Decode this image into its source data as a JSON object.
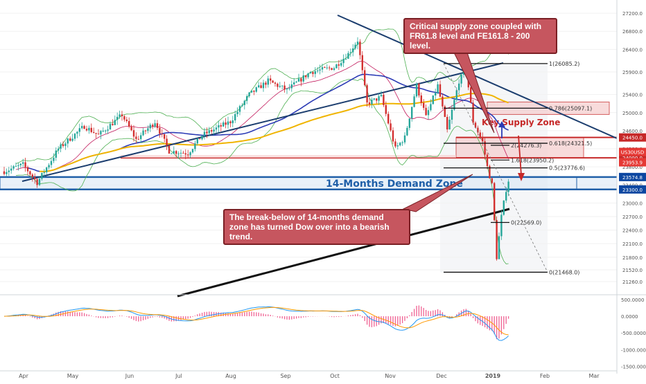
{
  "chart_data": {
    "type": "candlestick",
    "symbol": "US30USD",
    "colors": {
      "bull": "#26a69a",
      "bear": "#d32f2f",
      "ma_blue": "#2c3bb5",
      "ma_orange": "#f0b400",
      "ma_red": "#c2185b",
      "bollinger": "#4caf50",
      "demand": "#1f5fa8",
      "supply": "#c62828",
      "trend": "#1b3d6e",
      "macd": "#2196f3",
      "signal": "#ff9800",
      "hist": "#e91e63"
    },
    "y_axis": {
      "range": [
        21000,
        27400
      ],
      "ticks": [
        "27200.0",
        "26800.0",
        "26400.0",
        "25900.0",
        "25400.0",
        "25000.0",
        "24600.0",
        "24200.0",
        "23800.0",
        "23400.0",
        "23000.0",
        "22700.0",
        "22400.0",
        "22100.0",
        "21800.0",
        "21520.0",
        "21260.0"
      ]
    },
    "x_axis": {
      "labels": [
        "Apr",
        "May",
        "Jun",
        "Jul",
        "Aug",
        "Sep",
        "Oct",
        "Nov",
        "Dec",
        "2019",
        "Feb",
        "Mar"
      ]
    },
    "price_labels": [
      {
        "text": "24450.0",
        "kind": "supply"
      },
      {
        "text": "24000.0",
        "kind": "supply"
      },
      {
        "text": "US30USD",
        "kind": "current"
      },
      {
        "text": "23953.9",
        "kind": "current"
      },
      {
        "text": "23574.8",
        "kind": "demand"
      },
      {
        "text": "23300.0",
        "kind": "demand"
      }
    ],
    "zones": {
      "demand_label": "14-Months Demand Zone",
      "supply_label": "Key Supply Zone"
    },
    "fib_retracement": [
      {
        "text": "1(26085.2)",
        "value": 26085.2
      },
      {
        "text": "0.786(25097.1)",
        "value": 25097.1
      },
      {
        "text": "0.618(24321.5)",
        "value": 24321.5
      },
      {
        "text": "0.5(23776.6)",
        "value": 23776.6
      },
      {
        "text": "0(21468.0)",
        "value": 21468.0
      }
    ],
    "fib_extension": [
      {
        "text": "2(24276.3)",
        "value": 24276.3
      },
      {
        "text": "1.618(23950.2)",
        "value": 23950.2
      },
      {
        "text": "0(22569.0)",
        "value": 22569.0
      }
    ],
    "annotations": {
      "top": "Critical supply zone coupled with FR61.8 level and FE161.8 - 200 level.",
      "bottom": "The break-below of 14-months demand zone has turned Dow over into a bearish trend."
    },
    "macd_axis": {
      "range": [
        -1550,
        560
      ],
      "ticks": [
        "500.0000",
        "0.0000",
        "-500.0000",
        "-1000.0000",
        "-1500.0000"
      ]
    }
  }
}
